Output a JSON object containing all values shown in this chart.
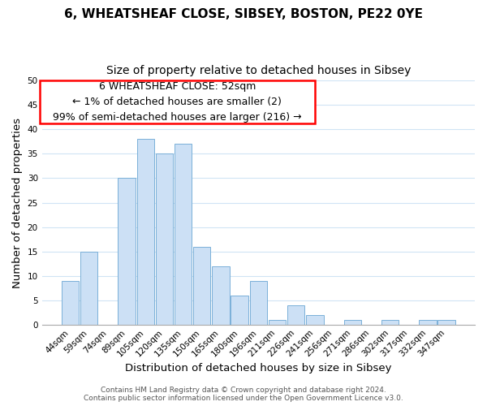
{
  "title": "6, WHEATSHEAF CLOSE, SIBSEY, BOSTON, PE22 0YE",
  "subtitle": "Size of property relative to detached houses in Sibsey",
  "xlabel": "Distribution of detached houses by size in Sibsey",
  "ylabel": "Number of detached properties",
  "bar_color": "#cce0f5",
  "bar_edge_color": "#7ab0d8",
  "bins": [
    "44sqm",
    "59sqm",
    "74sqm",
    "89sqm",
    "105sqm",
    "120sqm",
    "135sqm",
    "150sqm",
    "165sqm",
    "180sqm",
    "196sqm",
    "211sqm",
    "226sqm",
    "241sqm",
    "256sqm",
    "271sqm",
    "286sqm",
    "302sqm",
    "317sqm",
    "332sqm",
    "347sqm"
  ],
  "values": [
    9,
    15,
    0,
    30,
    38,
    35,
    37,
    16,
    12,
    6,
    9,
    1,
    4,
    2,
    0,
    1,
    0,
    1,
    0,
    1,
    1
  ],
  "ylim": [
    0,
    50
  ],
  "yticks": [
    0,
    5,
    10,
    15,
    20,
    25,
    30,
    35,
    40,
    45,
    50
  ],
  "annotation_line1": "6 WHEATSHEAF CLOSE: 52sqm",
  "annotation_line2": "← 1% of detached houses are smaller (2)",
  "annotation_line3": "99% of semi-detached houses are larger (216) →",
  "footer_line1": "Contains HM Land Registry data © Crown copyright and database right 2024.",
  "footer_line2": "Contains public sector information licensed under the Open Government Licence v3.0.",
  "background_color": "#ffffff",
  "grid_color": "#d0e4f5",
  "title_fontsize": 11,
  "subtitle_fontsize": 10,
  "axis_label_fontsize": 9.5,
  "tick_fontsize": 7.5,
  "annotation_fontsize": 9,
  "footer_fontsize": 6.5
}
